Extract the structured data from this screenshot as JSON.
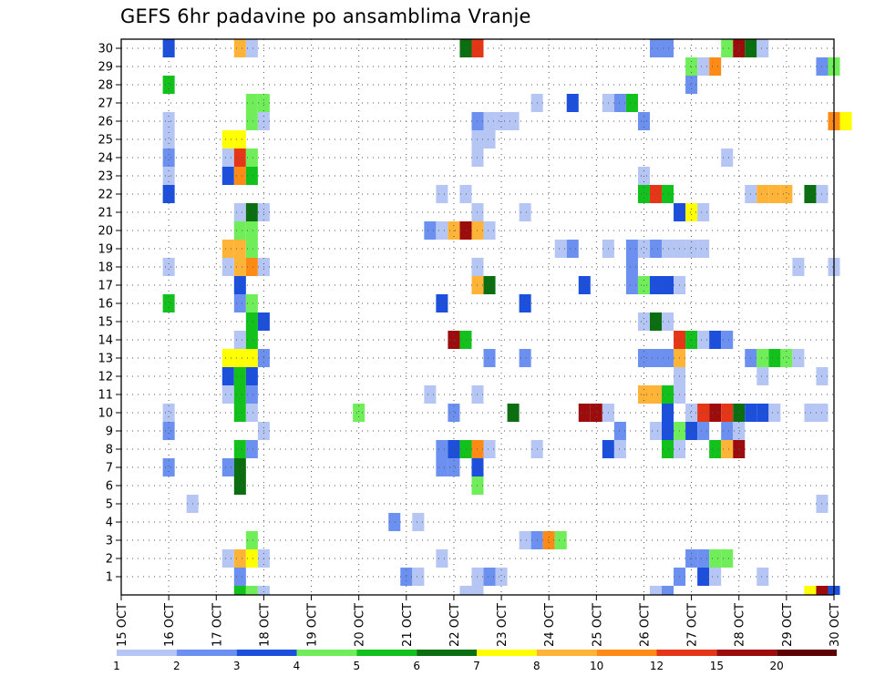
{
  "chart_data": {
    "type": "heatmap",
    "title": "GEFS 6hr padavine po ansamblima Vranje",
    "xlabel": "",
    "ylabel": "",
    "grid": true,
    "y_ticks": [
      "1",
      "2",
      "3",
      "4",
      "5",
      "6",
      "7",
      "8",
      "9",
      "10",
      "11",
      "12",
      "13",
      "14",
      "15",
      "16",
      "17",
      "18",
      "19",
      "20",
      "21",
      "22",
      "23",
      "24",
      "25",
      "26",
      "27",
      "28",
      "29",
      "30"
    ],
    "x_ticks": [
      "15 OCT",
      "16 OCT",
      "17 OCT",
      "18 OCT",
      "19 OCT",
      "20 OCT",
      "21 OCT",
      "22 OCT",
      "23 OCT",
      "24 OCT",
      "25 OCT",
      "26 OCT",
      "27 OCT",
      "28 OCT",
      "29 OCT",
      "30 OCT"
    ],
    "x_start_day": 15,
    "x_end_day": 30,
    "colorbar": {
      "labels": [
        "1",
        "2",
        "3",
        "4",
        "5",
        "6",
        "7",
        "8",
        "10",
        "12",
        "15",
        "20"
      ],
      "colors": [
        "#b6c6f4",
        "#6b90f0",
        "#1b4fdc",
        "#6fee5a",
        "#12c11c",
        "#0b6e10",
        "#ffff00",
        "#ffb437",
        "#ff8a16",
        "#e63618",
        "#9c0c0c",
        "#5e0000"
      ]
    },
    "bands": [
      {
        "from": 1,
        "to": 2,
        "color": "#b6c6f4"
      },
      {
        "from": 2,
        "to": 3,
        "color": "#6b90f0"
      },
      {
        "from": 3,
        "to": 4,
        "color": "#1b4fdc"
      },
      {
        "from": 4,
        "to": 5,
        "color": "#6fee5a"
      },
      {
        "from": 5,
        "to": 6,
        "color": "#12c11c"
      },
      {
        "from": 6,
        "to": 7,
        "color": "#0b6e10"
      },
      {
        "from": 7,
        "to": 8,
        "color": "#ffff00"
      },
      {
        "from": 8,
        "to": 10,
        "color": "#ffb437"
      },
      {
        "from": 10,
        "to": 12,
        "color": "#ff8a16"
      },
      {
        "from": 12,
        "to": 15,
        "color": "#e63618"
      },
      {
        "from": 15,
        "to": 20,
        "color": "#9c0c0c"
      },
      {
        "from": 20,
        "to": 30,
        "color": "#5e0000"
      }
    ],
    "cells": [
      {
        "m": 30,
        "d": 16.0,
        "v": 3.5
      },
      {
        "m": 30,
        "d": 17.5,
        "v": 9
      },
      {
        "m": 30,
        "d": 17.75,
        "v": 1.5
      },
      {
        "m": 30,
        "d": 22.25,
        "v": 6.5
      },
      {
        "m": 30,
        "d": 22.5,
        "v": 13
      },
      {
        "m": 30,
        "d": 26.25,
        "v": 2.5
      },
      {
        "m": 30,
        "d": 26.5,
        "v": 2.5
      },
      {
        "m": 30,
        "d": 27.75,
        "v": 4.5
      },
      {
        "m": 30,
        "d": 28.0,
        "v": 17
      },
      {
        "m": 30,
        "d": 28.25,
        "v": 6.5
      },
      {
        "m": 30,
        "d": 28.5,
        "v": 1.5
      },
      {
        "m": 29,
        "d": 27.0,
        "v": 4.5
      },
      {
        "m": 29,
        "d": 27.25,
        "v": 1.5
      },
      {
        "m": 29,
        "d": 27.5,
        "v": 11
      },
      {
        "m": 29,
        "d": 29.75,
        "v": 2.5
      },
      {
        "m": 29,
        "d": 30.0,
        "v": 4.5
      },
      {
        "m": 28,
        "d": 16.0,
        "v": 5.5
      },
      {
        "m": 28,
        "d": 27.0,
        "v": 2.5
      },
      {
        "m": 27,
        "d": 17.75,
        "v": 4.5
      },
      {
        "m": 27,
        "d": 18.0,
        "v": 4.5
      },
      {
        "m": 27,
        "d": 23.75,
        "v": 1.5
      },
      {
        "m": 27,
        "d": 24.5,
        "v": 3.5
      },
      {
        "m": 27,
        "d": 25.25,
        "v": 1.5
      },
      {
        "m": 27,
        "d": 25.5,
        "v": 2.5
      },
      {
        "m": 27,
        "d": 25.75,
        "v": 5.5
      },
      {
        "m": 26,
        "d": 16.0,
        "v": 1.5
      },
      {
        "m": 26,
        "d": 17.75,
        "v": 4.5
      },
      {
        "m": 26,
        "d": 18.0,
        "v": 1.5
      },
      {
        "m": 26,
        "d": 22.5,
        "v": 2.5
      },
      {
        "m": 26,
        "d": 22.75,
        "v": 1.5
      },
      {
        "m": 26,
        "d": 23.0,
        "v": 1.5
      },
      {
        "m": 26,
        "d": 23.25,
        "v": 1.5
      },
      {
        "m": 26,
        "d": 26.0,
        "v": 2.5
      },
      {
        "m": 26,
        "d": 30.0,
        "v": 11
      },
      {
        "m": 26,
        "d": 30.25,
        "v": 7.5
      },
      {
        "m": 25,
        "d": 16.0,
        "v": 1.5
      },
      {
        "m": 25,
        "d": 17.25,
        "v": 7.5
      },
      {
        "m": 25,
        "d": 17.5,
        "v": 7.5
      },
      {
        "m": 25,
        "d": 22.5,
        "v": 1.5
      },
      {
        "m": 25,
        "d": 22.75,
        "v": 1.5
      },
      {
        "m": 24,
        "d": 16.0,
        "v": 2.5
      },
      {
        "m": 24,
        "d": 17.25,
        "v": 1.5
      },
      {
        "m": 24,
        "d": 17.5,
        "v": 13
      },
      {
        "m": 24,
        "d": 17.75,
        "v": 4.5
      },
      {
        "m": 24,
        "d": 22.5,
        "v": 1.5
      },
      {
        "m": 24,
        "d": 27.75,
        "v": 1.5
      },
      {
        "m": 23,
        "d": 16.0,
        "v": 1.5
      },
      {
        "m": 23,
        "d": 17.25,
        "v": 3.5
      },
      {
        "m": 23,
        "d": 17.5,
        "v": 11
      },
      {
        "m": 23,
        "d": 17.75,
        "v": 5.5
      },
      {
        "m": 23,
        "d": 26.0,
        "v": 1.5
      },
      {
        "m": 22,
        "d": 16.0,
        "v": 3.5
      },
      {
        "m": 22,
        "d": 21.75,
        "v": 1.5
      },
      {
        "m": 22,
        "d": 22.25,
        "v": 1.5
      },
      {
        "m": 22,
        "d": 26.0,
        "v": 5.5
      },
      {
        "m": 22,
        "d": 26.25,
        "v": 13
      },
      {
        "m": 22,
        "d": 26.5,
        "v": 5.5
      },
      {
        "m": 22,
        "d": 28.25,
        "v": 1.5
      },
      {
        "m": 22,
        "d": 28.5,
        "v": 9
      },
      {
        "m": 22,
        "d": 28.75,
        "v": 9
      },
      {
        "m": 22,
        "d": 29.0,
        "v": 9
      },
      {
        "m": 22,
        "d": 29.5,
        "v": 6.5
      },
      {
        "m": 22,
        "d": 29.75,
        "v": 1.5
      },
      {
        "m": 21,
        "d": 17.5,
        "v": 1.5
      },
      {
        "m": 21,
        "d": 17.75,
        "v": 6.5
      },
      {
        "m": 21,
        "d": 18.0,
        "v": 1.5
      },
      {
        "m": 21,
        "d": 22.5,
        "v": 1.5
      },
      {
        "m": 21,
        "d": 23.5,
        "v": 1.5
      },
      {
        "m": 21,
        "d": 26.75,
        "v": 3.5
      },
      {
        "m": 21,
        "d": 27.0,
        "v": 7.5
      },
      {
        "m": 21,
        "d": 27.25,
        "v": 1.5
      },
      {
        "m": 20,
        "d": 17.5,
        "v": 4.5
      },
      {
        "m": 20,
        "d": 17.75,
        "v": 4.5
      },
      {
        "m": 20,
        "d": 21.5,
        "v": 2.5
      },
      {
        "m": 20,
        "d": 21.75,
        "v": 1.5
      },
      {
        "m": 20,
        "d": 22.0,
        "v": 9
      },
      {
        "m": 20,
        "d": 22.25,
        "v": 17
      },
      {
        "m": 20,
        "d": 22.5,
        "v": 9
      },
      {
        "m": 20,
        "d": 22.75,
        "v": 1.5
      },
      {
        "m": 19,
        "d": 17.25,
        "v": 9
      },
      {
        "m": 19,
        "d": 17.5,
        "v": 9
      },
      {
        "m": 19,
        "d": 17.75,
        "v": 4.5
      },
      {
        "m": 19,
        "d": 24.25,
        "v": 1.5
      },
      {
        "m": 19,
        "d": 24.5,
        "v": 2.5
      },
      {
        "m": 19,
        "d": 25.25,
        "v": 1.5
      },
      {
        "m": 19,
        "d": 25.75,
        "v": 2.5
      },
      {
        "m": 19,
        "d": 26.0,
        "v": 1.5
      },
      {
        "m": 19,
        "d": 26.25,
        "v": 2.5
      },
      {
        "m": 19,
        "d": 26.5,
        "v": 1.5
      },
      {
        "m": 19,
        "d": 26.75,
        "v": 1.5
      },
      {
        "m": 19,
        "d": 27.0,
        "v": 1.5
      },
      {
        "m": 19,
        "d": 27.25,
        "v": 1.5
      },
      {
        "m": 18,
        "d": 16.0,
        "v": 1.5
      },
      {
        "m": 18,
        "d": 17.25,
        "v": 1.5
      },
      {
        "m": 18,
        "d": 17.5,
        "v": 9
      },
      {
        "m": 18,
        "d": 17.75,
        "v": 11
      },
      {
        "m": 18,
        "d": 18.0,
        "v": 1.5
      },
      {
        "m": 18,
        "d": 22.5,
        "v": 1.5
      },
      {
        "m": 18,
        "d": 25.75,
        "v": 2.5
      },
      {
        "m": 18,
        "d": 29.25,
        "v": 1.5
      },
      {
        "m": 18,
        "d": 30.0,
        "v": 1.5
      },
      {
        "m": 17,
        "d": 17.5,
        "v": 3.5
      },
      {
        "m": 17,
        "d": 22.5,
        "v": 9
      },
      {
        "m": 17,
        "d": 22.75,
        "v": 6.5
      },
      {
        "m": 17,
        "d": 24.75,
        "v": 3.5
      },
      {
        "m": 17,
        "d": 25.75,
        "v": 2.5
      },
      {
        "m": 17,
        "d": 26.0,
        "v": 4.5
      },
      {
        "m": 17,
        "d": 26.25,
        "v": 3.5
      },
      {
        "m": 17,
        "d": 26.5,
        "v": 3.5
      },
      {
        "m": 17,
        "d": 26.75,
        "v": 1.5
      },
      {
        "m": 16,
        "d": 16.0,
        "v": 5.5
      },
      {
        "m": 16,
        "d": 17.5,
        "v": 2.5
      },
      {
        "m": 16,
        "d": 17.75,
        "v": 4.5
      },
      {
        "m": 16,
        "d": 21.75,
        "v": 3.5
      },
      {
        "m": 16,
        "d": 23.5,
        "v": 3.5
      },
      {
        "m": 15,
        "d": 17.75,
        "v": 5.5
      },
      {
        "m": 15,
        "d": 18.0,
        "v": 3.5
      },
      {
        "m": 15,
        "d": 26.0,
        "v": 1.5
      },
      {
        "m": 15,
        "d": 26.25,
        "v": 6.5
      },
      {
        "m": 15,
        "d": 26.5,
        "v": 1.5
      },
      {
        "m": 14,
        "d": 17.5,
        "v": 1.5
      },
      {
        "m": 14,
        "d": 17.75,
        "v": 5.5
      },
      {
        "m": 14,
        "d": 22.0,
        "v": 17
      },
      {
        "m": 14,
        "d": 22.25,
        "v": 5.5
      },
      {
        "m": 14,
        "d": 26.75,
        "v": 13
      },
      {
        "m": 14,
        "d": 27.0,
        "v": 5.5
      },
      {
        "m": 14,
        "d": 27.25,
        "v": 1.5
      },
      {
        "m": 14,
        "d": 27.5,
        "v": 3.5
      },
      {
        "m": 14,
        "d": 27.75,
        "v": 2.5
      },
      {
        "m": 13,
        "d": 17.25,
        "v": 7.5
      },
      {
        "m": 13,
        "d": 17.5,
        "v": 7.5
      },
      {
        "m": 13,
        "d": 17.75,
        "v": 7.5
      },
      {
        "m": 13,
        "d": 18.0,
        "v": 2.5
      },
      {
        "m": 13,
        "d": 22.75,
        "v": 2.5
      },
      {
        "m": 13,
        "d": 23.5,
        "v": 2.5
      },
      {
        "m": 13,
        "d": 26.0,
        "v": 2.5
      },
      {
        "m": 13,
        "d": 26.25,
        "v": 2.5
      },
      {
        "m": 13,
        "d": 26.5,
        "v": 2.5
      },
      {
        "m": 13,
        "d": 26.75,
        "v": 9
      },
      {
        "m": 13,
        "d": 28.25,
        "v": 2.5
      },
      {
        "m": 13,
        "d": 28.5,
        "v": 4.5
      },
      {
        "m": 13,
        "d": 28.75,
        "v": 5.5
      },
      {
        "m": 13,
        "d": 29.0,
        "v": 4.5
      },
      {
        "m": 13,
        "d": 29.25,
        "v": 1.5
      },
      {
        "m": 12,
        "d": 17.25,
        "v": 3.5
      },
      {
        "m": 12,
        "d": 17.5,
        "v": 5.5
      },
      {
        "m": 12,
        "d": 17.75,
        "v": 3.5
      },
      {
        "m": 12,
        "d": 26.75,
        "v": 1.5
      },
      {
        "m": 12,
        "d": 28.5,
        "v": 1.5
      },
      {
        "m": 12,
        "d": 29.75,
        "v": 1.5
      },
      {
        "m": 11,
        "d": 17.25,
        "v": 1.5
      },
      {
        "m": 11,
        "d": 17.5,
        "v": 5.5
      },
      {
        "m": 11,
        "d": 17.75,
        "v": 2.5
      },
      {
        "m": 11,
        "d": 21.5,
        "v": 1.5
      },
      {
        "m": 11,
        "d": 22.5,
        "v": 1.5
      },
      {
        "m": 11,
        "d": 26.0,
        "v": 9
      },
      {
        "m": 11,
        "d": 26.25,
        "v": 9
      },
      {
        "m": 11,
        "d": 26.5,
        "v": 5.5
      },
      {
        "m": 11,
        "d": 26.75,
        "v": 1.5
      },
      {
        "m": 10,
        "d": 16.0,
        "v": 1.5
      },
      {
        "m": 10,
        "d": 17.5,
        "v": 5.5
      },
      {
        "m": 10,
        "d": 17.75,
        "v": 1.5
      },
      {
        "m": 10,
        "d": 20.0,
        "v": 4.5
      },
      {
        "m": 10,
        "d": 22.0,
        "v": 2.5
      },
      {
        "m": 10,
        "d": 23.25,
        "v": 6.5
      },
      {
        "m": 10,
        "d": 24.75,
        "v": 17
      },
      {
        "m": 10,
        "d": 25.0,
        "v": 17
      },
      {
        "m": 10,
        "d": 25.25,
        "v": 1.5
      },
      {
        "m": 10,
        "d": 26.5,
        "v": 3.5
      },
      {
        "m": 10,
        "d": 27.0,
        "v": 1.5
      },
      {
        "m": 10,
        "d": 27.25,
        "v": 13
      },
      {
        "m": 10,
        "d": 27.5,
        "v": 17
      },
      {
        "m": 10,
        "d": 27.75,
        "v": 13
      },
      {
        "m": 10,
        "d": 28.0,
        "v": 6.5
      },
      {
        "m": 10,
        "d": 28.25,
        "v": 3.5
      },
      {
        "m": 10,
        "d": 28.5,
        "v": 3.5
      },
      {
        "m": 10,
        "d": 28.75,
        "v": 1.5
      },
      {
        "m": 10,
        "d": 29.5,
        "v": 1.5
      },
      {
        "m": 10,
        "d": 29.75,
        "v": 1.5
      },
      {
        "m": 9,
        "d": 16.0,
        "v": 2.5
      },
      {
        "m": 9,
        "d": 18.0,
        "v": 1.5
      },
      {
        "m": 9,
        "d": 25.5,
        "v": 2.5
      },
      {
        "m": 9,
        "d": 26.25,
        "v": 1.5
      },
      {
        "m": 9,
        "d": 26.5,
        "v": 3.5
      },
      {
        "m": 9,
        "d": 26.75,
        "v": 4.5
      },
      {
        "m": 9,
        "d": 27.0,
        "v": 3.5
      },
      {
        "m": 9,
        "d": 27.25,
        "v": 2.5
      },
      {
        "m": 9,
        "d": 27.75,
        "v": 2.5
      },
      {
        "m": 9,
        "d": 28.0,
        "v": 1.5
      },
      {
        "m": 8,
        "d": 17.5,
        "v": 5.5
      },
      {
        "m": 8,
        "d": 17.75,
        "v": 2.5
      },
      {
        "m": 8,
        "d": 21.75,
        "v": 2.5
      },
      {
        "m": 8,
        "d": 22.0,
        "v": 3.5
      },
      {
        "m": 8,
        "d": 22.25,
        "v": 5.5
      },
      {
        "m": 8,
        "d": 22.5,
        "v": 11
      },
      {
        "m": 8,
        "d": 22.75,
        "v": 1.5
      },
      {
        "m": 8,
        "d": 23.75,
        "v": 1.5
      },
      {
        "m": 8,
        "d": 25.25,
        "v": 3.5
      },
      {
        "m": 8,
        "d": 25.5,
        "v": 1.5
      },
      {
        "m": 8,
        "d": 26.5,
        "v": 5.5
      },
      {
        "m": 8,
        "d": 26.75,
        "v": 1.5
      },
      {
        "m": 8,
        "d": 27.5,
        "v": 5.5
      },
      {
        "m": 8,
        "d": 27.75,
        "v": 9
      },
      {
        "m": 8,
        "d": 28.0,
        "v": 17
      },
      {
        "m": 7,
        "d": 16.0,
        "v": 2.5
      },
      {
        "m": 7,
        "d": 17.25,
        "v": 2.5
      },
      {
        "m": 7,
        "d": 17.5,
        "v": 6.5
      },
      {
        "m": 7,
        "d": 21.75,
        "v": 2.5
      },
      {
        "m": 7,
        "d": 22.0,
        "v": 2.5
      },
      {
        "m": 7,
        "d": 22.5,
        "v": 3.5
      },
      {
        "m": 6,
        "d": 17.5,
        "v": 6.5
      },
      {
        "m": 6,
        "d": 22.5,
        "v": 4.5
      },
      {
        "m": 5,
        "d": 16.5,
        "v": 1.5
      },
      {
        "m": 5,
        "d": 29.75,
        "v": 1.5
      },
      {
        "m": 4,
        "d": 20.75,
        "v": 2.5
      },
      {
        "m": 4,
        "d": 21.25,
        "v": 1.5
      },
      {
        "m": 3,
        "d": 17.75,
        "v": 4.5
      },
      {
        "m": 3,
        "d": 23.5,
        "v": 1.5
      },
      {
        "m": 3,
        "d": 23.75,
        "v": 2.5
      },
      {
        "m": 3,
        "d": 24.0,
        "v": 11
      },
      {
        "m": 3,
        "d": 24.25,
        "v": 4.5
      },
      {
        "m": 2,
        "d": 17.25,
        "v": 1.5
      },
      {
        "m": 2,
        "d": 17.5,
        "v": 9
      },
      {
        "m": 2,
        "d": 17.75,
        "v": 7.5
      },
      {
        "m": 2,
        "d": 18.0,
        "v": 1.5
      },
      {
        "m": 2,
        "d": 21.75,
        "v": 1.5
      },
      {
        "m": 2,
        "d": 27.0,
        "v": 2.5
      },
      {
        "m": 2,
        "d": 27.25,
        "v": 2.5
      },
      {
        "m": 2,
        "d": 27.5,
        "v": 4.5
      },
      {
        "m": 2,
        "d": 27.75,
        "v": 4.5
      },
      {
        "m": 1,
        "d": 17.5,
        "v": 2.5
      },
      {
        "m": 1,
        "d": 21.0,
        "v": 2.5
      },
      {
        "m": 1,
        "d": 21.25,
        "v": 1.5
      },
      {
        "m": 1,
        "d": 22.5,
        "v": 1.5
      },
      {
        "m": 1,
        "d": 22.75,
        "v": 2.5
      },
      {
        "m": 1,
        "d": 23.0,
        "v": 1.5
      },
      {
        "m": 1,
        "d": 26.75,
        "v": 2.5
      },
      {
        "m": 1,
        "d": 27.25,
        "v": 3.5
      },
      {
        "m": 1,
        "d": 27.5,
        "v": 1.5
      },
      {
        "m": 1,
        "d": 28.5,
        "v": 1.5
      },
      {
        "m": 0,
        "d": 17.5,
        "v": 5.5
      },
      {
        "m": 0,
        "d": 17.75,
        "v": 4.5
      },
      {
        "m": 0,
        "d": 18.0,
        "v": 1.5
      },
      {
        "m": 0,
        "d": 22.25,
        "v": 1.5
      },
      {
        "m": 0,
        "d": 22.5,
        "v": 1.5
      },
      {
        "m": 0,
        "d": 26.25,
        "v": 1.5
      },
      {
        "m": 0,
        "d": 26.5,
        "v": 2.5
      },
      {
        "m": 0,
        "d": 29.5,
        "v": 7.5
      },
      {
        "m": 0,
        "d": 29.75,
        "v": 17
      },
      {
        "m": 0,
        "d": 30.0,
        "v": 3.5
      }
    ]
  }
}
